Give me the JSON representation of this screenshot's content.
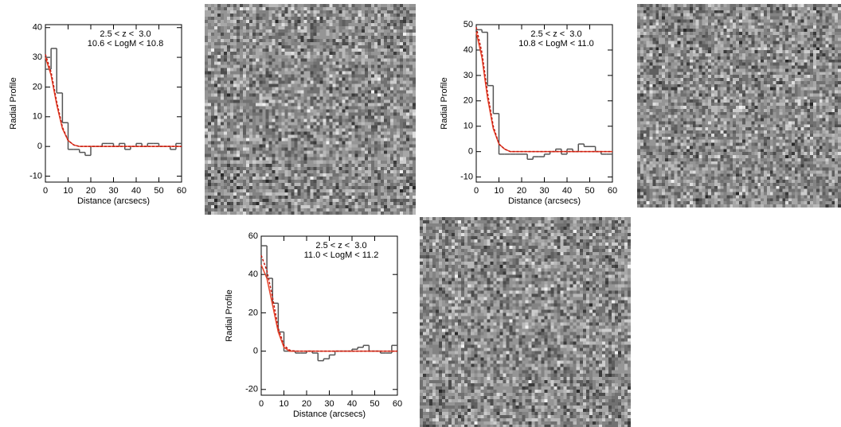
{
  "chart_data": [
    {
      "type": "histogram",
      "annotations": [
        "2.5 < z <  3.0",
        "10.6 < LogM < 10.8"
      ],
      "xlabel": "Distance (arcsecs)",
      "ylabel": "Radial Profile",
      "xlim": [
        0,
        60
      ],
      "ylim": [
        -12,
        41
      ],
      "xticks": [
        0,
        10,
        20,
        30,
        40,
        50,
        60
      ],
      "yticks": [
        -10,
        0,
        10,
        20,
        30,
        40
      ],
      "bins": [
        0,
        2.5,
        5,
        7.5,
        10,
        12.5,
        15,
        17.5,
        20,
        22.5,
        25,
        27.5,
        30,
        32.5,
        35,
        37.5,
        40,
        42.5,
        45,
        47.5,
        50,
        52.5,
        55,
        57.5,
        60
      ],
      "counts": [
        26,
        33,
        18,
        8,
        -1,
        -1,
        -2,
        -3,
        0,
        0,
        1,
        1,
        0,
        1,
        -1,
        0,
        1,
        0,
        1,
        1,
        0,
        0,
        -1,
        1
      ],
      "color": "#555555",
      "series": [
        {
          "color": "#e8442a",
          "style": "solid",
          "x": [
            0,
            2.5,
            5,
            7.5,
            10,
            12.5,
            15,
            20,
            30,
            40,
            50,
            60
          ],
          "values": [
            30,
            24,
            14,
            6,
            2,
            0.5,
            0,
            0,
            0,
            0,
            0,
            0
          ]
        },
        {
          "color": "#c41a10",
          "style": "dashed",
          "x": [
            0,
            2.5,
            5,
            7.5,
            10,
            12.5,
            15,
            20,
            30,
            40,
            50,
            60
          ],
          "values": [
            31,
            25,
            15,
            6.5,
            2,
            0.5,
            0,
            0,
            0,
            0,
            0,
            0
          ]
        }
      ]
    },
    {
      "type": "histogram",
      "annotations": [
        "2.5 < z <  3.0",
        "10.8 < LogM < 11.0"
      ],
      "xlabel": "Distance (arcsecs)",
      "ylabel": "Radial Profile",
      "xlim": [
        0,
        60
      ],
      "ylim": [
        -12,
        50
      ],
      "xticks": [
        0,
        10,
        20,
        30,
        40,
        50,
        60
      ],
      "yticks": [
        -10,
        0,
        10,
        20,
        30,
        40,
        50
      ],
      "bins": [
        0,
        2.5,
        5,
        7.5,
        10,
        12.5,
        15,
        17.5,
        20,
        22.5,
        25,
        27.5,
        30,
        32.5,
        35,
        37.5,
        40,
        42.5,
        45,
        47.5,
        50,
        52.5,
        55,
        57.5,
        60
      ],
      "counts": [
        48,
        47,
        26,
        15,
        -1,
        -1,
        -1,
        -1,
        -1,
        -3,
        -2,
        -2,
        -1,
        0,
        1,
        -1,
        1,
        0,
        3,
        2,
        2,
        0,
        -1,
        -1
      ],
      "color": "#555555",
      "series": [
        {
          "color": "#e8442a",
          "style": "solid",
          "x": [
            0,
            2.5,
            5,
            7.5,
            10,
            12.5,
            15,
            20,
            30,
            40,
            50,
            60
          ],
          "values": [
            47,
            37,
            21,
            9,
            3,
            1,
            0,
            0,
            0,
            0,
            0,
            0
          ]
        },
        {
          "color": "#c41a10",
          "style": "dashed",
          "x": [
            0,
            2.5,
            5,
            7.5,
            10,
            12.5,
            15,
            20,
            30,
            40,
            50,
            60
          ],
          "values": [
            49,
            39,
            23,
            10,
            3,
            1,
            0,
            0,
            0,
            0,
            0,
            0
          ]
        }
      ]
    },
    {
      "type": "histogram",
      "annotations": [
        "2.5 < z <  3.0",
        "11.0 < LogM < 11.2"
      ],
      "xlabel": "Distance (arcsecs)",
      "ylabel": "Radial Profile",
      "xlim": [
        0,
        60
      ],
      "ylim": [
        -23,
        60
      ],
      "xticks": [
        0,
        10,
        20,
        30,
        40,
        50,
        60
      ],
      "yticks": [
        -20,
        0,
        20,
        40,
        60
      ],
      "bins": [
        0,
        2.5,
        5,
        7.5,
        10,
        12.5,
        15,
        17.5,
        20,
        22.5,
        25,
        27.5,
        30,
        32.5,
        35,
        37.5,
        40,
        42.5,
        45,
        47.5,
        50,
        52.5,
        55,
        57.5,
        60
      ],
      "counts": [
        55,
        38,
        25,
        10,
        0,
        0,
        -1,
        -1,
        0,
        -1,
        -5,
        -4,
        -2,
        0,
        0,
        0,
        1,
        2,
        3,
        0,
        0,
        -1,
        -1,
        3
      ],
      "color": "#555555",
      "series": [
        {
          "color": "#e8442a",
          "style": "solid",
          "x": [
            0,
            2.5,
            5,
            7.5,
            10,
            12.5,
            15,
            20,
            30,
            40,
            50,
            60
          ],
          "values": [
            45,
            38,
            24,
            10,
            2,
            0,
            0,
            0,
            0,
            0,
            0,
            0
          ]
        },
        {
          "color": "#c41a10",
          "style": "dashed",
          "x": [
            0,
            2.5,
            5,
            7.5,
            10,
            12.5,
            15,
            20,
            30,
            40,
            50,
            60
          ],
          "values": [
            50,
            42,
            28,
            12,
            3,
            0.5,
            0,
            0,
            0,
            0,
            0,
            0
          ]
        }
      ]
    }
  ]
}
